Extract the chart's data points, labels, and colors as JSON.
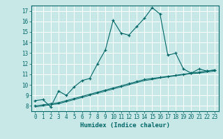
{
  "title": "",
  "xlabel": "Humidex (Indice chaleur)",
  "ylabel": "",
  "bg_color": "#c8e8e8",
  "grid_color": "#ffffff",
  "line_color": "#006666",
  "xlim": [
    -0.5,
    23.5
  ],
  "ylim": [
    7.5,
    17.5
  ],
  "yticks": [
    8,
    9,
    10,
    11,
    12,
    13,
    14,
    15,
    16,
    17
  ],
  "xticks": [
    0,
    1,
    2,
    3,
    4,
    5,
    6,
    7,
    8,
    9,
    10,
    11,
    12,
    13,
    14,
    15,
    16,
    17,
    18,
    19,
    20,
    21,
    22,
    23
  ],
  "line1_x": [
    0,
    1,
    2,
    3,
    4,
    5,
    6,
    7,
    8,
    9,
    10,
    11,
    12,
    13,
    14,
    15,
    16,
    17,
    18,
    19,
    20,
    21,
    22,
    23
  ],
  "line1_y": [
    8.5,
    8.6,
    7.9,
    9.4,
    9.0,
    9.8,
    10.4,
    10.6,
    12.0,
    13.3,
    16.1,
    14.9,
    14.7,
    15.5,
    16.3,
    17.3,
    16.7,
    12.8,
    13.0,
    11.5,
    11.1,
    11.5,
    11.3,
    11.4
  ],
  "line2_x": [
    0,
    1,
    2,
    3,
    4,
    5,
    6,
    7,
    8,
    9,
    10,
    11,
    12,
    13,
    14,
    15,
    16,
    17,
    18,
    19,
    20,
    21,
    22,
    23
  ],
  "line2_y": [
    8.0,
    8.1,
    8.2,
    8.3,
    8.5,
    8.7,
    8.9,
    9.1,
    9.3,
    9.5,
    9.7,
    9.9,
    10.1,
    10.3,
    10.5,
    10.6,
    10.7,
    10.8,
    10.9,
    11.0,
    11.1,
    11.2,
    11.3,
    11.4
  ],
  "line3_x": [
    0,
    1,
    2,
    3,
    4,
    5,
    6,
    7,
    8,
    9,
    10,
    11,
    12,
    13,
    14,
    15,
    16,
    17,
    18,
    19,
    20,
    21,
    22,
    23
  ],
  "line3_y": [
    7.9,
    8.0,
    8.1,
    8.2,
    8.4,
    8.6,
    8.8,
    9.0,
    9.2,
    9.4,
    9.6,
    9.8,
    10.0,
    10.2,
    10.4,
    10.5,
    10.65,
    10.75,
    10.85,
    10.95,
    11.05,
    11.1,
    11.2,
    11.3
  ]
}
